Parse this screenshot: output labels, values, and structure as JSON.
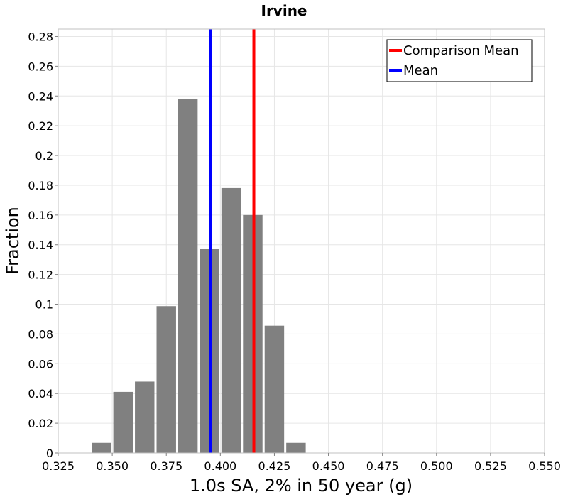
{
  "chart_data": {
    "type": "bar",
    "title": "Irvine",
    "xlabel": "1.0s SA, 2% in 50 year (g)",
    "ylabel": "Fraction",
    "xlim": [
      0.325,
      0.55
    ],
    "ylim": [
      0,
      0.285
    ],
    "grid": true,
    "bin_width": 0.01,
    "bins": [
      {
        "center": 0.345,
        "value": 0.0068
      },
      {
        "center": 0.355,
        "value": 0.0411
      },
      {
        "center": 0.365,
        "value": 0.048
      },
      {
        "center": 0.375,
        "value": 0.0987
      },
      {
        "center": 0.385,
        "value": 0.2378
      },
      {
        "center": 0.395,
        "value": 0.137
      },
      {
        "center": 0.405,
        "value": 0.1781
      },
      {
        "center": 0.415,
        "value": 0.16
      },
      {
        "center": 0.425,
        "value": 0.0856
      },
      {
        "center": 0.435,
        "value": 0.0068
      }
    ],
    "bar_color": "#808080",
    "x_ticks": [
      0.325,
      0.35,
      0.375,
      0.4,
      0.425,
      0.45,
      0.475,
      0.5,
      0.525,
      0.55
    ],
    "x_tick_labels": [
      "0.325",
      "0.350",
      "0.375",
      "0.400",
      "0.425",
      "0.450",
      "0.475",
      "0.500",
      "0.525",
      "0.550"
    ],
    "y_ticks": [
      0,
      0.02,
      0.04,
      0.06,
      0.08,
      0.1,
      0.12,
      0.14,
      0.16,
      0.18,
      0.2,
      0.22,
      0.24,
      0.26,
      0.28
    ],
    "y_tick_labels": [
      "0",
      "0.02",
      "0.04",
      "0.06",
      "0.08",
      "0.1",
      "0.12",
      "0.14",
      "0.16",
      "0.18",
      "0.2",
      "0.22",
      "0.24",
      "0.26",
      "0.28"
    ],
    "vlines": [
      {
        "name": "Comparison Mean",
        "x": 0.4155,
        "color": "#ff0000"
      },
      {
        "name": "Mean",
        "x": 0.3955,
        "color": "#0000ff"
      }
    ],
    "legend": {
      "placement": "top-right",
      "entries": [
        {
          "label": "Comparison Mean",
          "color": "#ff0000"
        },
        {
          "label": "Mean",
          "color": "#0000ff"
        }
      ]
    }
  }
}
